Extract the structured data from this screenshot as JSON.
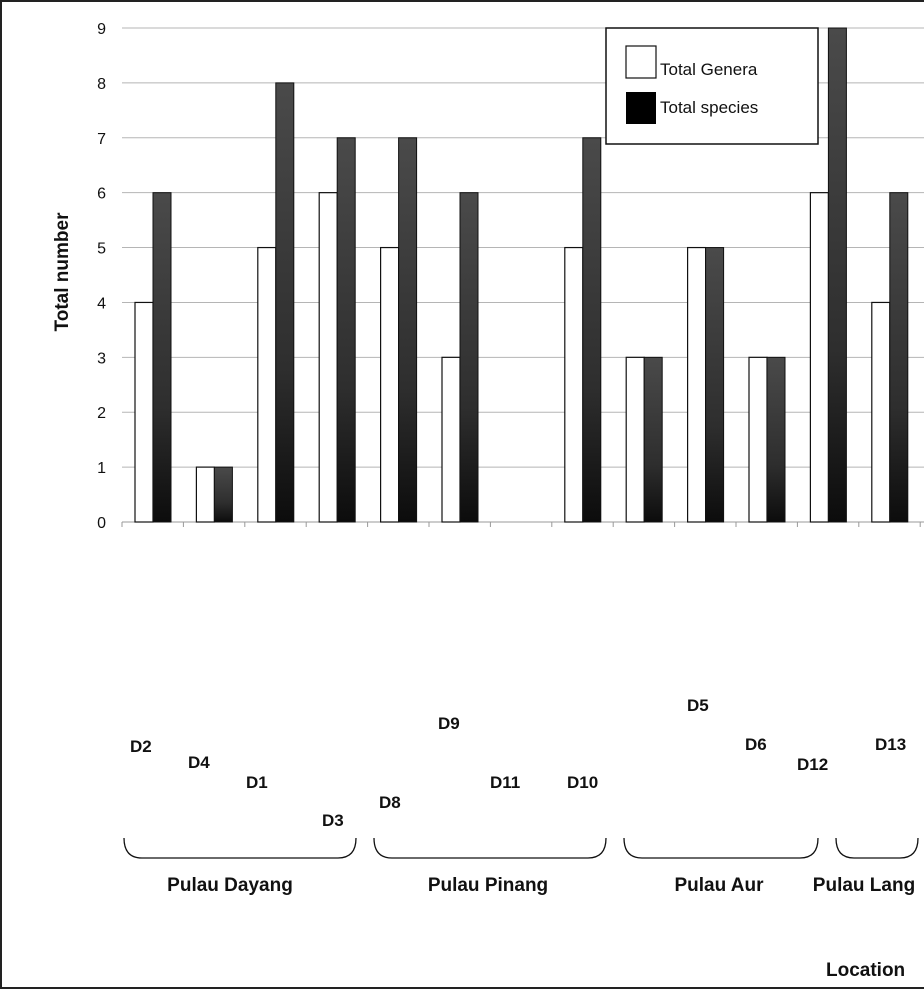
{
  "chart_data": {
    "type": "bar",
    "ylabel": "Total number",
    "xlabel": "Location",
    "ylim": [
      0,
      9
    ],
    "yticks": [
      "0",
      "1",
      "2",
      "3",
      "4",
      "5",
      "6",
      "7",
      "8",
      "9"
    ],
    "grid": true,
    "legend_position": "top-right",
    "categories": [
      "D2",
      "D4",
      "D1",
      "D3",
      "D8",
      "D9",
      "",
      "D11",
      "D10",
      "D5",
      "D6",
      "D12",
      "D13"
    ],
    "series": [
      {
        "name": "Total Genera",
        "values": [
          4,
          1,
          5,
          6,
          5,
          3,
          null,
          5,
          3,
          5,
          3,
          6,
          4
        ],
        "color": "#ffffff"
      },
      {
        "name": "Total species",
        "values": [
          6,
          1,
          8,
          7,
          7,
          6,
          null,
          7,
          3,
          5,
          3,
          9,
          6
        ],
        "color": "#3a3a3a"
      }
    ],
    "groups": [
      {
        "label": "Pulau Dayang"
      },
      {
        "label": "Pulau Pinang"
      },
      {
        "label": "Pulau Aur"
      },
      {
        "label": "Pulau Lang"
      }
    ]
  }
}
